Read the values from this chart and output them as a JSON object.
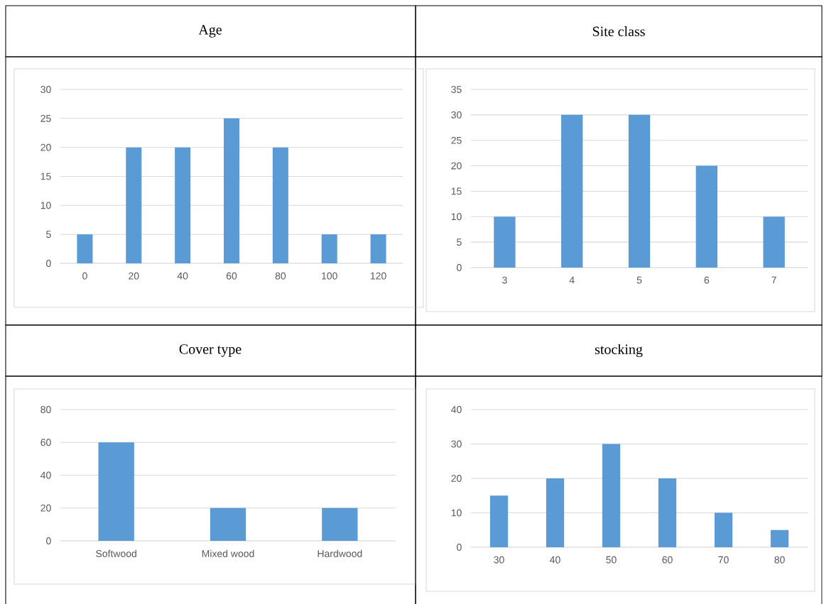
{
  "chart_data": [
    {
      "type": "bar",
      "title": "Age",
      "categories": [
        "0",
        "20",
        "40",
        "60",
        "80",
        "100",
        "120"
      ],
      "values": [
        5,
        20,
        20,
        25,
        20,
        5,
        5
      ],
      "color": "#5b9bd5",
      "ylim": [
        0,
        30
      ],
      "yticks": [
        0,
        5,
        10,
        15,
        20,
        25,
        30
      ],
      "grid": "y"
    },
    {
      "type": "bar",
      "title": "Site class",
      "categories": [
        "3",
        "4",
        "5",
        "6",
        "7"
      ],
      "values": [
        10,
        30,
        30,
        20,
        10
      ],
      "color": "#5b9bd5",
      "ylim": [
        0,
        35
      ],
      "yticks": [
        0,
        5,
        10,
        15,
        20,
        25,
        30,
        35
      ],
      "grid": "y"
    },
    {
      "type": "bar",
      "title": "Cover type",
      "categories": [
        "Softwood",
        "Mixed wood",
        "Hardwood"
      ],
      "values": [
        60,
        20,
        20
      ],
      "color": "#5b9bd5",
      "ylim": [
        0,
        80
      ],
      "yticks": [
        0,
        20,
        40,
        60,
        80
      ],
      "grid": "y"
    },
    {
      "type": "bar",
      "title": "stocking",
      "categories": [
        "30",
        "40",
        "50",
        "60",
        "70",
        "80"
      ],
      "values": [
        15,
        20,
        30,
        20,
        10,
        5
      ],
      "color": "#5b9bd5",
      "ylim": [
        0,
        40
      ],
      "yticks": [
        0,
        10,
        20,
        30,
        40
      ],
      "grid": "y"
    }
  ]
}
